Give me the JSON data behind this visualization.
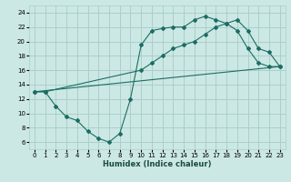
{
  "xlabel": "Humidex (Indice chaleur)",
  "bg_color": "#cce8e4",
  "grid_color": "#aacfcb",
  "line_color": "#1a6e64",
  "xlim": [
    -0.5,
    23.5
  ],
  "ylim": [
    5.0,
    25.0
  ],
  "yticks": [
    6,
    8,
    10,
    12,
    14,
    16,
    18,
    20,
    22,
    24
  ],
  "xticks": [
    0,
    1,
    2,
    3,
    4,
    5,
    6,
    7,
    8,
    9,
    10,
    11,
    12,
    13,
    14,
    15,
    16,
    17,
    18,
    19,
    20,
    21,
    22,
    23
  ],
  "line1_x": [
    0,
    1,
    2,
    3,
    4,
    5,
    6,
    7,
    8,
    9,
    10,
    11,
    12,
    13,
    14,
    15,
    16,
    17,
    18,
    19,
    20,
    21,
    22,
    23
  ],
  "line1_y": [
    13,
    13,
    11,
    9.5,
    9.0,
    7.5,
    6.5,
    6.0,
    7.2,
    12.0,
    19.5,
    21.5,
    21.8,
    22.0,
    22.0,
    23.0,
    23.5,
    23.0,
    22.5,
    21.5,
    19.0,
    17.0,
    16.5,
    16.5
  ],
  "line2_x": [
    0,
    1,
    10,
    11,
    12,
    13,
    14,
    15,
    16,
    17,
    18,
    19,
    20,
    21,
    22,
    23
  ],
  "line2_y": [
    13,
    13,
    16,
    17,
    18,
    19,
    19.5,
    20,
    21,
    22,
    22.5,
    23,
    21.5,
    19,
    18.5,
    16.5
  ],
  "line3_x": [
    0,
    23
  ],
  "line3_y": [
    13.0,
    16.5
  ],
  "xlabel_fontsize": 6.0,
  "tick_fontsize": 5.0
}
